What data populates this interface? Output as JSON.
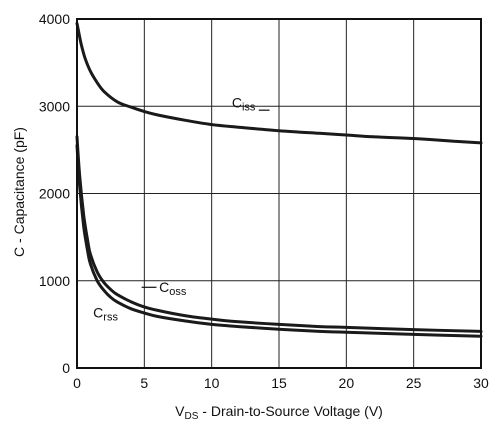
{
  "chart_data": {
    "type": "line",
    "title": "",
    "xlabel": "V_DS - Drain-to-Source Voltage (V)",
    "xlabel_parts": {
      "v": "V",
      "sub": "DS",
      "rest": " - Drain-to-Source Voltage (V)"
    },
    "ylabel": "C - Capacitance (pF)",
    "xlim": [
      0,
      30
    ],
    "ylim": [
      0,
      4000
    ],
    "xticks": [
      "0",
      "5",
      "10",
      "15",
      "20",
      "25",
      "30"
    ],
    "yticks": [
      "0",
      "1000",
      "2000",
      "3000",
      "4000"
    ],
    "grid": true,
    "line_color": "#1a1a1a",
    "series": [
      {
        "name": "Ciss",
        "label_main": "C",
        "label_sub": "iss",
        "x": [
          0,
          0.3,
          0.6,
          1,
          1.5,
          2,
          3,
          4,
          5,
          6,
          8,
          10,
          12,
          15,
          18,
          20,
          22,
          25,
          28,
          30
        ],
        "y": [
          3950,
          3720,
          3550,
          3400,
          3270,
          3170,
          3050,
          2990,
          2940,
          2900,
          2840,
          2790,
          2760,
          2720,
          2690,
          2670,
          2650,
          2630,
          2600,
          2580
        ]
      },
      {
        "name": "Coss",
        "label_main": "C",
        "label_sub": "oss",
        "x": [
          0,
          0.2,
          0.5,
          0.8,
          1,
          1.5,
          2,
          2.5,
          3,
          4,
          5,
          6,
          8,
          10,
          12,
          15,
          18,
          20,
          25,
          30
        ],
        "y": [
          2650,
          2200,
          1750,
          1450,
          1300,
          1100,
          980,
          900,
          840,
          760,
          700,
          660,
          600,
          560,
          530,
          500,
          475,
          465,
          440,
          420
        ]
      },
      {
        "name": "Crss",
        "label_main": "C",
        "label_sub": "rss",
        "x": [
          0,
          0.2,
          0.5,
          0.8,
          1,
          1.5,
          2,
          2.5,
          3,
          4,
          5,
          6,
          8,
          10,
          12,
          15,
          18,
          20,
          25,
          30
        ],
        "y": [
          2550,
          2080,
          1620,
          1330,
          1190,
          1000,
          890,
          810,
          755,
          680,
          630,
          590,
          540,
          500,
          475,
          445,
          420,
          410,
          385,
          365
        ]
      }
    ]
  }
}
